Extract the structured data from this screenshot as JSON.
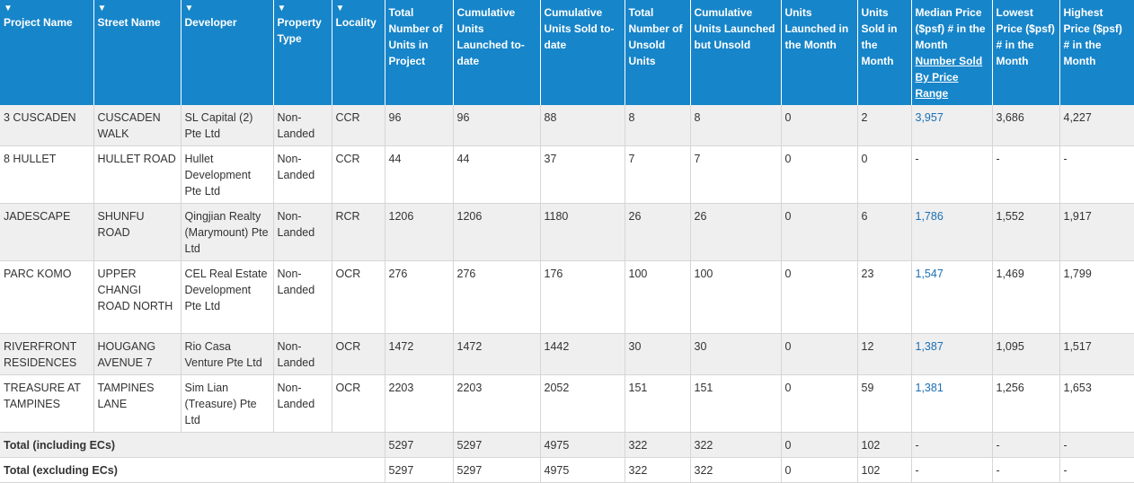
{
  "headers": {
    "project_name": "Project Name",
    "street_name": "Street Name",
    "developer": "Developer",
    "property_type": "Property Type",
    "locality": "Locality",
    "total_units": "Total Number of Units in Project",
    "cum_launched": "Cumulative Units Launched to-date",
    "cum_sold": "Cumulative Units Sold to-date",
    "total_unsold": "Total Number of Unsold Units",
    "cum_launched_unsold": "Cumulative Units Launched but Unsold",
    "launched_month": "Units Launched in the Month",
    "sold_month": "Units Sold in the Month",
    "median_price": "Median Price ($psf) # in the Month",
    "median_price_link": "Number Sold By Price Range",
    "lowest_price": "Lowest Price ($psf) # in the Month",
    "highest_price": "Highest Price ($psf) # in the Month"
  },
  "rows": [
    {
      "project": "3 CUSCADEN",
      "street": "CUSCADEN WALK",
      "developer": "SL Capital (2) Pte Ltd",
      "type": "Non-Landed",
      "locality": "CCR",
      "total": "96",
      "launched": "96",
      "sold": "88",
      "unsold": "8",
      "launched_unsold": "8",
      "launched_month": "0",
      "sold_month": "2",
      "median": "3,957",
      "lowest": "3,686",
      "highest": "4,227"
    },
    {
      "project": "8 HULLET",
      "street": "HULLET ROAD",
      "developer": "Hullet Development Pte Ltd",
      "type": "Non-Landed",
      "locality": "CCR",
      "total": "44",
      "launched": "44",
      "sold": "37",
      "unsold": "7",
      "launched_unsold": "7",
      "launched_month": "0",
      "sold_month": "0",
      "median": "-",
      "lowest": "-",
      "highest": "-"
    },
    {
      "project": "JADESCAPE",
      "street": "SHUNFU ROAD",
      "developer": "Qingjian Realty (Marymount) Pte Ltd",
      "type": "Non-Landed",
      "locality": "RCR",
      "total": "1206",
      "launched": "1206",
      "sold": "1180",
      "unsold": "26",
      "launched_unsold": "26",
      "launched_month": "0",
      "sold_month": "6",
      "median": "1,786",
      "lowest": "1,552",
      "highest": "1,917"
    },
    {
      "project": "PARC KOMO",
      "street": "UPPER CHANGI ROAD NORTH",
      "developer": "CEL Real Estate Development Pte Ltd",
      "type": "Non-Landed",
      "locality": "OCR",
      "total": "276",
      "launched": "276",
      "sold": "176",
      "unsold": "100",
      "launched_unsold": "100",
      "launched_month": "0",
      "sold_month": "23",
      "median": "1,547",
      "lowest": "1,469",
      "highest": "1,799"
    },
    {
      "project": "RIVERFRONT RESIDENCES",
      "street": "HOUGANG AVENUE 7",
      "developer": "Rio Casa Venture Pte Ltd",
      "type": "Non-Landed",
      "locality": "OCR",
      "total": "1472",
      "launched": "1472",
      "sold": "1442",
      "unsold": "30",
      "launched_unsold": "30",
      "launched_month": "0",
      "sold_month": "12",
      "median": "1,387",
      "lowest": "1,095",
      "highest": "1,517"
    },
    {
      "project": "TREASURE AT TAMPINES",
      "street": "TAMPINES LANE",
      "developer": "Sim Lian (Treasure) Pte Ltd",
      "type": "Non-Landed",
      "locality": "OCR",
      "total": "2203",
      "launched": "2203",
      "sold": "2052",
      "unsold": "151",
      "launched_unsold": "151",
      "launched_month": "0",
      "sold_month": "59",
      "median": "1,381",
      "lowest": "1,256",
      "highest": "1,653"
    }
  ],
  "totals": [
    {
      "label": "Total (including ECs)",
      "total": "5297",
      "launched": "5297",
      "sold": "4975",
      "unsold": "322",
      "launched_unsold": "322",
      "launched_month": "0",
      "sold_month": "102",
      "median": "-",
      "lowest": "-",
      "highest": "-"
    },
    {
      "label": "Total (excluding ECs)",
      "total": "5297",
      "launched": "5297",
      "sold": "4975",
      "unsold": "322",
      "launched_unsold": "322",
      "launched_month": "0",
      "sold_month": "102",
      "median": "-",
      "lowest": "-",
      "highest": "-"
    }
  ],
  "colors": {
    "header_bg": "#1785c9",
    "odd_row_bg": "#efefef",
    "link": "#1a6fb5"
  },
  "icons": {
    "sort": "sort-down-icon"
  }
}
